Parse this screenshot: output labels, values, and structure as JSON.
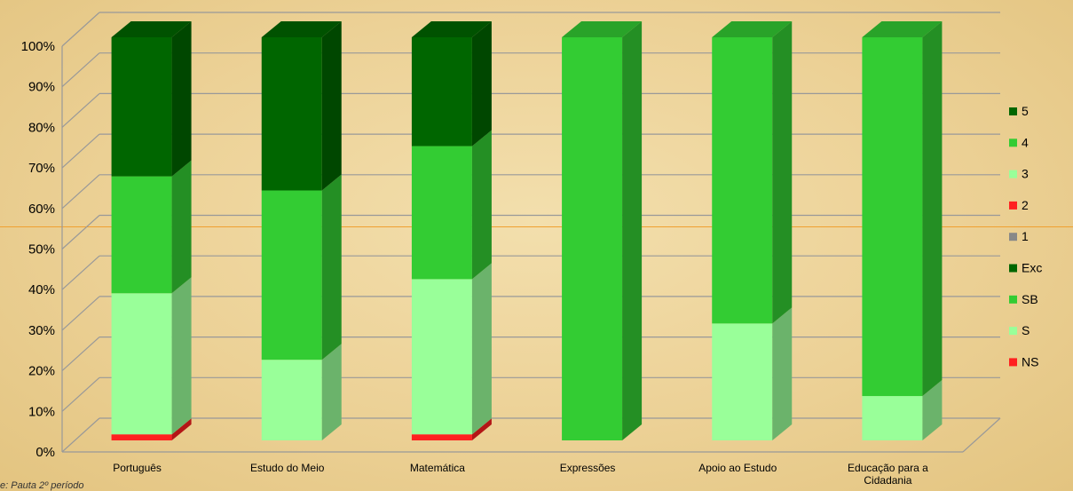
{
  "chart_data": {
    "type": "bar",
    "stacked": true,
    "percent": true,
    "three_d": true,
    "categories": [
      "Português",
      "Estudo do Meio",
      "Matemática",
      "Expressões",
      "Apoio ao Estudo",
      "Educação para a Cidadania"
    ],
    "category_lines": [
      [
        "Português"
      ],
      [
        "Estudo do Meio"
      ],
      [
        "Matemática"
      ],
      [
        "Expressões"
      ],
      [
        "Apoio ao Estudo"
      ],
      [
        "Educação para a",
        "Cidadania"
      ]
    ],
    "yticks": [
      "0%",
      "10%",
      "20%",
      "30%",
      "40%",
      "50%",
      "60%",
      "70%",
      "80%",
      "90%",
      "100%"
    ],
    "ylim": [
      0,
      100
    ],
    "series": [
      {
        "name": "NS",
        "color": "#ff2020",
        "values": [
          1.5,
          0,
          1.5,
          0,
          0,
          0
        ]
      },
      {
        "name": "S",
        "color": "#99ff99",
        "values": [
          35,
          20,
          38.5,
          0,
          29,
          11
        ]
      },
      {
        "name": "SB",
        "color": "#33cc33",
        "values": [
          29,
          42,
          33,
          100,
          71,
          89
        ]
      },
      {
        "name": "Exc",
        "color": "#006600",
        "values": [
          34.5,
          38,
          27,
          0,
          0,
          0
        ]
      },
      {
        "name": "1",
        "color": "#888888",
        "values": [
          0,
          0,
          0,
          0,
          0,
          0
        ]
      },
      {
        "name": "2",
        "color": "#ff2020",
        "values": [
          0,
          0,
          0,
          0,
          0,
          0
        ]
      },
      {
        "name": "3",
        "color": "#99ff99",
        "values": [
          0,
          0,
          0,
          0,
          0,
          0
        ]
      },
      {
        "name": "4",
        "color": "#33cc33",
        "values": [
          0,
          0,
          0,
          0,
          0,
          0
        ]
      },
      {
        "name": "5",
        "color": "#006600",
        "values": [
          0,
          0,
          0,
          0,
          0,
          0
        ]
      }
    ],
    "legend_order": [
      "5",
      "4",
      "3",
      "2",
      "1",
      "Exc",
      "SB",
      "S",
      "NS"
    ],
    "legend_position": "right",
    "grid": true
  },
  "note": "e: Pauta 2º período",
  "colors": {
    "background": "#ecd196",
    "grid": "#999999",
    "highlight_line": "#f0a030"
  }
}
